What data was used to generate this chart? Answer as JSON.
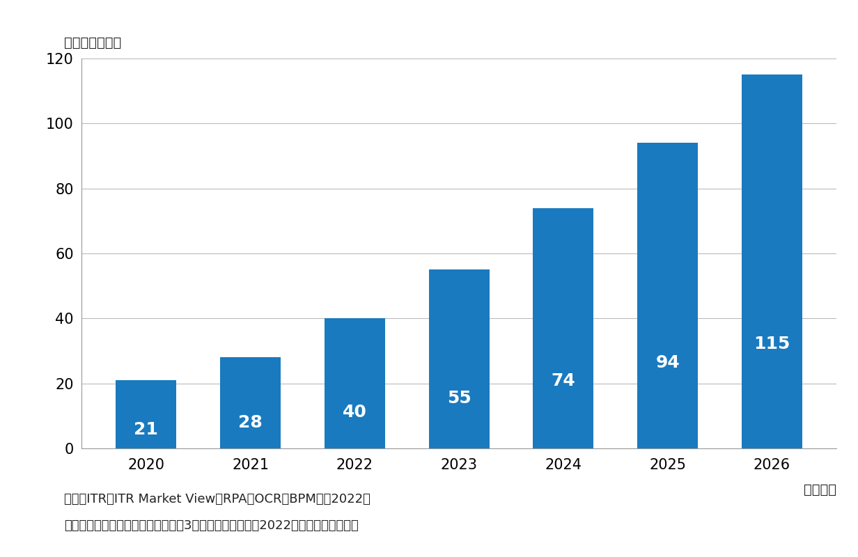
{
  "categories": [
    "2020",
    "2021",
    "2022",
    "2023",
    "2024",
    "2025",
    "2026"
  ],
  "values": [
    21,
    28,
    40,
    55,
    74,
    94,
    115
  ],
  "bar_color": "#1a7abf",
  "ylim": [
    0,
    120
  ],
  "yticks": [
    0,
    20,
    40,
    60,
    80,
    100,
    120
  ],
  "unit_label": "（単位：億円）",
  "xlabel": "（年度）",
  "footnote_line1": "出典：ITR『ITR Market View：RPA／OCR／BPM市場2022』",
  "footnote_line2": "＊ベンダーの売上金額を対象とし、3月期ベースで換算。2022年度以降は予渡値。",
  "bg_color": "#ffffff",
  "grid_color": "#bbbbbb",
  "label_color": "#ffffff",
  "label_fontsize": 18,
  "tick_fontsize": 15,
  "unit_fontsize": 14,
  "footnote_fontsize": 13,
  "xlabel_fontsize": 14,
  "bar_width": 0.58
}
